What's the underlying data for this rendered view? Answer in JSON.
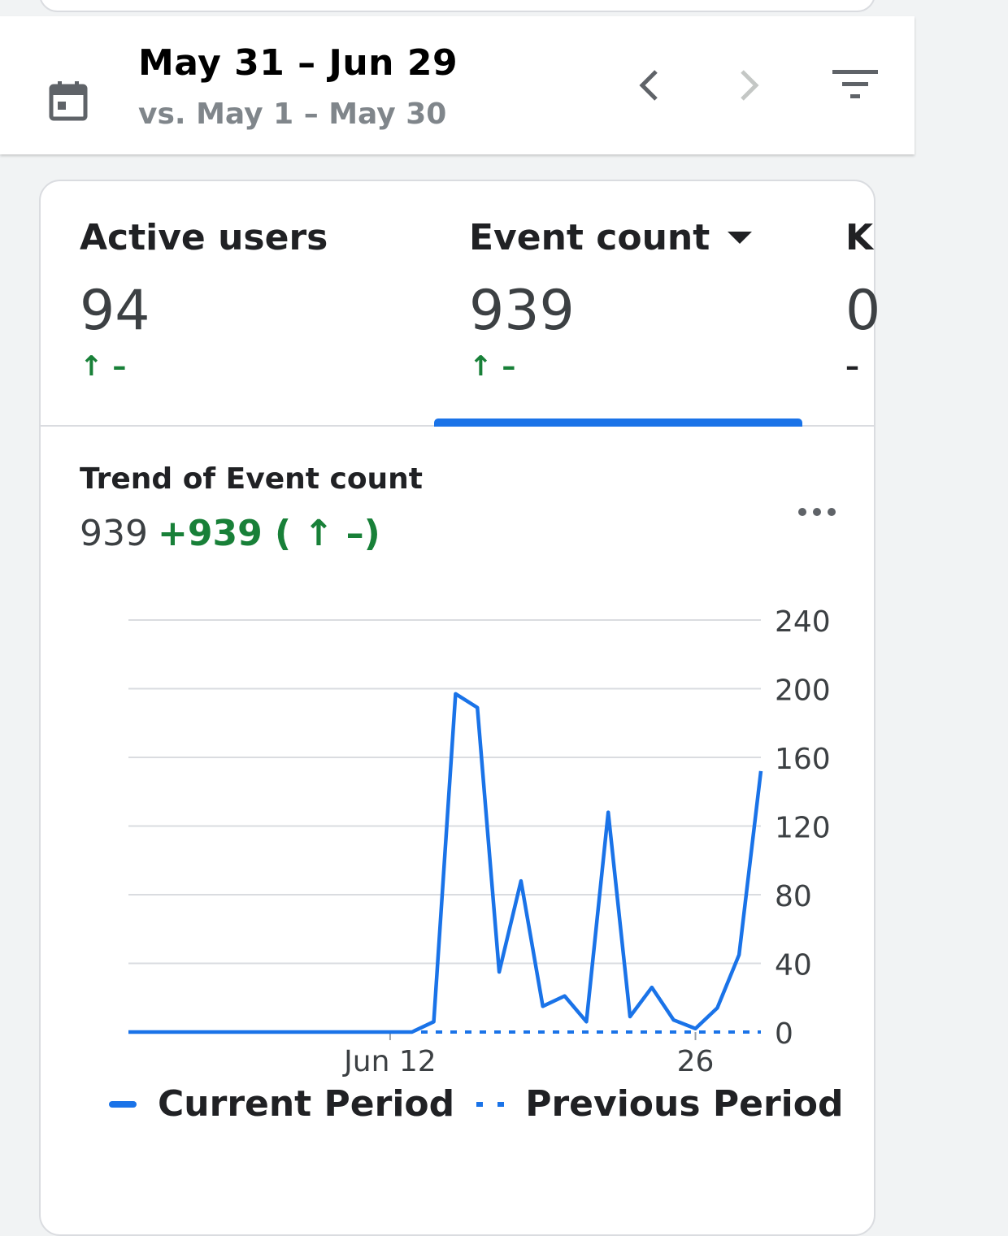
{
  "header": {
    "date_range": "May 31 – Jun 29",
    "compare_range": "vs. May 1 – May 30",
    "icons": {
      "calendar": "calendar-icon",
      "prev": "chevron-left-icon",
      "next": "chevron-right-icon",
      "filter": "filter-icon"
    }
  },
  "metrics": [
    {
      "label": "Active users",
      "value": "94",
      "delta": "↑ –",
      "trend": "up"
    },
    {
      "label": "Event count",
      "value": "939",
      "delta": "↑ –",
      "trend": "up",
      "selected": true
    },
    {
      "label": "K",
      "value": "0",
      "delta": "–",
      "trend": "neutral"
    }
  ],
  "trend": {
    "title": "Trend of Event count",
    "total": "939",
    "change": "+939 ( ↑ –)"
  },
  "colors": {
    "accent": "#1a73e8",
    "positive": "#188038",
    "muted": "#80868b"
  },
  "legend": {
    "current": "Current Period",
    "previous": "Previous Period"
  },
  "chart_data": {
    "type": "line",
    "x": [
      "May 31",
      "Jun 1",
      "Jun 2",
      "Jun 3",
      "Jun 4",
      "Jun 5",
      "Jun 6",
      "Jun 7",
      "Jun 8",
      "Jun 9",
      "Jun 10",
      "Jun 11",
      "Jun 12",
      "Jun 13",
      "Jun 14",
      "Jun 15",
      "Jun 16",
      "Jun 17",
      "Jun 18",
      "Jun 19",
      "Jun 20",
      "Jun 21",
      "Jun 22",
      "Jun 23",
      "Jun 24",
      "Jun 25",
      "Jun 26",
      "Jun 27",
      "Jun 28",
      "Jun 29"
    ],
    "x_tick_labels": [
      "Jun 12",
      "26"
    ],
    "x_tick_indices": [
      12,
      26
    ],
    "y_ticks": [
      0,
      40,
      80,
      120,
      160,
      200,
      240
    ],
    "ylim": [
      0,
      240
    ],
    "series": [
      {
        "name": "Current Period",
        "style": "solid",
        "values": [
          0,
          0,
          0,
          0,
          0,
          0,
          0,
          0,
          0,
          0,
          0,
          0,
          0,
          0,
          6,
          197,
          189,
          35,
          88,
          15,
          21,
          6,
          128,
          9,
          26,
          7,
          2,
          14,
          45,
          152
        ]
      },
      {
        "name": "Previous Period",
        "style": "dotted",
        "values": [
          0,
          0,
          0,
          0,
          0,
          0,
          0,
          0,
          0,
          0,
          0,
          0,
          0,
          0,
          0,
          0,
          0,
          0,
          0,
          0,
          0,
          0,
          0,
          0,
          0,
          0,
          0,
          0,
          0,
          0
        ]
      }
    ],
    "grid": true,
    "legend_position": "bottom"
  }
}
